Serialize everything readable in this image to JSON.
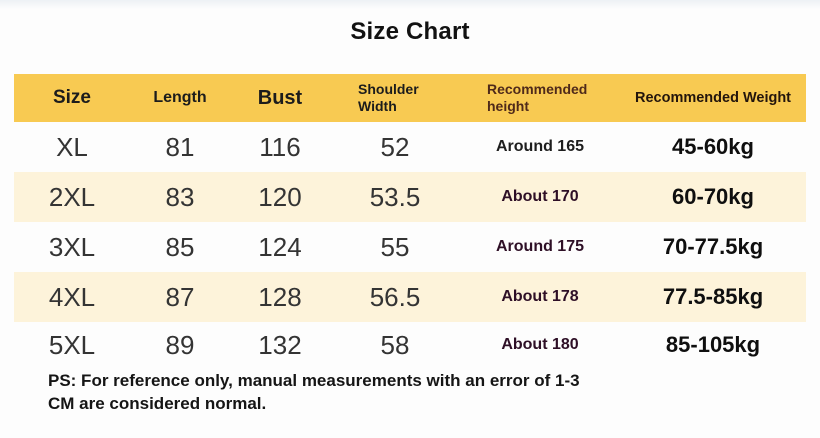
{
  "title": "Size Chart",
  "chart_data": {
    "type": "table",
    "title": "Size Chart",
    "columns": [
      "Size",
      "Length",
      "Bust",
      "Shoulder Width",
      "Recommended height",
      "Recommended Weight"
    ],
    "rows": [
      [
        "XL",
        "81",
        "116",
        "52",
        "Around 165",
        "45-60kg"
      ],
      [
        "2XL",
        "83",
        "120",
        "53.5",
        "About 170",
        "60-70kg"
      ],
      [
        "3XL",
        "85",
        "124",
        "55",
        "Around 175",
        "70-77.5kg"
      ],
      [
        "4XL",
        "87",
        "128",
        "56.5",
        "About 178",
        "77.5-85kg"
      ],
      [
        "5XL",
        "89",
        "132",
        "58",
        "About 180",
        "85-105kg"
      ]
    ],
    "note": "PS: For reference only, manual measurements with an error of 1-3 CM are considered normal."
  },
  "note_lines": [
    "PS: For reference only, manual measurements with an error of 1-3",
    "CM are considered normal."
  ],
  "colors": {
    "header_bg": "#f8ca52",
    "row_alt_bg": "#fdf3da",
    "title_text": "#121212",
    "header_text": "#1c1c1c",
    "height_header_text": "#4f2a1a",
    "weight_header_text": "#23150c",
    "body_text": "#343434",
    "height_value_text": "#2e0f26",
    "weight_text": "#0f0f0f",
    "note_text": "#151515"
  }
}
